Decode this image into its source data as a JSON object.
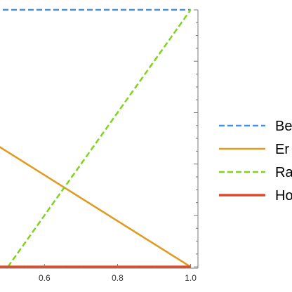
{
  "chart_data": {
    "type": "line",
    "title": "",
    "xlabel": "",
    "ylabel": "",
    "xlim": [
      0.44,
      1.02
    ],
    "ylim": [
      -0.005,
      1.0
    ],
    "x_ticks": [
      {
        "value": 0.6,
        "label": "0.6"
      },
      {
        "value": 0.8,
        "label": "0.8"
      },
      {
        "value": 1.0,
        "label": "1.0"
      }
    ],
    "x_minor_step": 0.05,
    "y_minor_step": 0.05,
    "grid": false,
    "frame": true,
    "legend_position": "right",
    "series": [
      {
        "name": "Be",
        "color": "#4a8fe0",
        "dash": "dashed",
        "x": [
          0.44,
          1.0
        ],
        "y": [
          1.0,
          1.0
        ]
      },
      {
        "name": "Er",
        "color": "#e09a1e",
        "dash": "solid",
        "x": [
          0.44,
          1.0
        ],
        "y": [
          0.5,
          0.0
        ]
      },
      {
        "name": "Ra",
        "color": "#7fd41e",
        "dash": "dashed",
        "x": [
          0.5,
          1.0
        ],
        "y": [
          0.0,
          1.0
        ]
      },
      {
        "name": "Ho",
        "color": "#dc4c2c",
        "dash": "solid",
        "x": [
          0.44,
          1.0
        ],
        "y": [
          0.0,
          0.0
        ]
      }
    ]
  }
}
